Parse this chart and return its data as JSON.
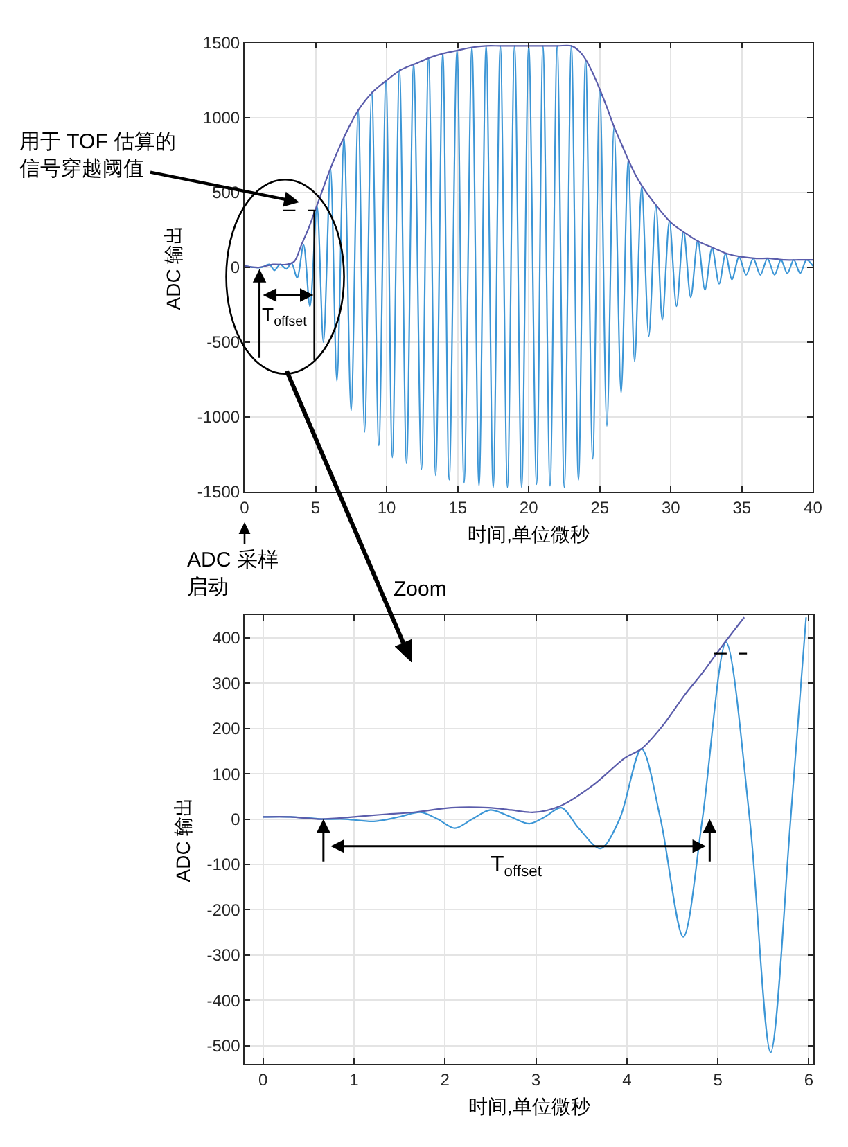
{
  "chart_data": [
    {
      "type": "line",
      "xlabel": "时间,单位微秒",
      "ylabel": "ADC 输出",
      "series": [
        {
          "color": "#3c96d6",
          "x": [
            0,
            0.65,
            1.2,
            1.75,
            2.1,
            2.5,
            2.95,
            3.3,
            3.7,
            4.15,
            4.6,
            5.1,
            5.55,
            6.05,
            6.5,
            7.0,
            7.5,
            8.0,
            8.45,
            8.95,
            9.45,
            9.95,
            10.4,
            10.9,
            11.4,
            11.9,
            12.45,
            12.95,
            13.45,
            13.95,
            14.4,
            14.95,
            15.45,
            16.0,
            16.5,
            17.0,
            17.5,
            18.0,
            18.5,
            19.0,
            19.5,
            20.0,
            20.55,
            21.0,
            21.5,
            22.0,
            22.5,
            23.0,
            23.5,
            24.0,
            24.5,
            25.0,
            25.5,
            26.0,
            26.5,
            27.0,
            27.45,
            27.95,
            28.45,
            28.95,
            29.4,
            29.9,
            30.4,
            30.9,
            31.4,
            31.9,
            32.4,
            32.9,
            33.4,
            33.85,
            34.3,
            34.8,
            35.3,
            35.8,
            36.3,
            36.8,
            37.3,
            37.75,
            38.2,
            38.65,
            39.1,
            39.55,
            40
          ],
          "values": [
            10,
            0,
            0,
            20,
            -20,
            20,
            -10,
            30,
            -70,
            150,
            -260,
            410,
            -500,
            660,
            -760,
            870,
            -960,
            1050,
            -1100,
            1170,
            -1190,
            1250,
            -1270,
            1320,
            -1310,
            1360,
            -1350,
            1400,
            -1390,
            1430,
            -1420,
            1450,
            -1440,
            1470,
            -1460,
            1480,
            -1470,
            1480,
            -1470,
            1480,
            -1470,
            1480,
            -1450,
            1480,
            -1460,
            1480,
            -1470,
            1480,
            -1420,
            1390,
            -1280,
            1190,
            -1060,
            940,
            -840,
            720,
            -630,
            540,
            -460,
            410,
            -350,
            310,
            -260,
            240,
            -200,
            180,
            -150,
            130,
            -110,
            90,
            -80,
            70,
            -50,
            60,
            -50,
            60,
            -50,
            50,
            -40,
            50,
            -40,
            50,
            10
          ]
        },
        {
          "color": "#5a5cab",
          "x": [
            0,
            1,
            2,
            3,
            3.5,
            4,
            4.5,
            5,
            5.5,
            6,
            7,
            8,
            9,
            10,
            11,
            12,
            13,
            14,
            15,
            16,
            17,
            18,
            20,
            22,
            23,
            23.5,
            24,
            24.5,
            25,
            25.5,
            26,
            26.5,
            27,
            27.5,
            28,
            29,
            30,
            31,
            32,
            33,
            34,
            35,
            36,
            37,
            38,
            39,
            40
          ],
          "values": [
            10,
            0,
            20,
            20,
            40,
            150,
            260,
            390,
            520,
            650,
            870,
            1050,
            1170,
            1250,
            1320,
            1360,
            1400,
            1430,
            1450,
            1470,
            1480,
            1480,
            1480,
            1480,
            1480,
            1450,
            1390,
            1300,
            1190,
            1070,
            940,
            830,
            720,
            620,
            540,
            410,
            300,
            230,
            170,
            130,
            90,
            70,
            60,
            60,
            50,
            50,
            50
          ]
        },
        {
          "color": "#000000",
          "x": [
            2.7,
            5.0
          ],
          "values": [
            380,
            380
          ],
          "line_style": "dashed"
        },
        {
          "color": "#000000",
          "x": [
            4.9,
            4.9
          ],
          "values": [
            -620,
            380
          ]
        }
      ],
      "xlim": [
        0,
        40
      ],
      "xticks": [
        0,
        5,
        10,
        15,
        20,
        25,
        30,
        35,
        40
      ],
      "ylim": [
        -1500,
        1500
      ],
      "yticks": [
        -1500,
        -1000,
        -500,
        0,
        500,
        1000,
        1500
      ],
      "grid": true,
      "annotations": [
        "用于 TOF 估算的信号穿越阈值",
        "ADC 采样启动",
        "T$_{offset}$"
      ]
    },
    {
      "type": "line",
      "xlabel": "时间,单位微秒",
      "ylabel": "ADC 输出",
      "series": [
        {
          "color": "#3c96d6",
          "x": [
            0,
            0.3,
            0.65,
            0.9,
            1.22,
            1.5,
            1.73,
            1.92,
            2.11,
            2.3,
            2.5,
            2.72,
            2.93,
            3.1,
            3.28,
            3.47,
            3.71,
            3.92,
            4.16,
            4.37,
            4.62,
            4.83,
            5.09,
            5.35,
            5.58,
            5.8,
            5.97
          ],
          "values": [
            5,
            5,
            0,
            0,
            -5,
            5,
            15,
            0,
            -20,
            0,
            20,
            5,
            -10,
            5,
            25,
            -20,
            -65,
            0,
            155,
            0,
            -260,
            0,
            390,
            0,
            -515,
            0,
            445
          ]
        },
        {
          "color": "#5a5cab",
          "x": [
            0,
            0.3,
            0.64,
            1.0,
            1.31,
            1.66,
            2.07,
            2.48,
            2.73,
            2.98,
            3.28,
            3.63,
            3.98,
            4.16,
            4.39,
            4.64,
            4.84,
            5.04,
            5.29
          ],
          "values": [
            5,
            5,
            0,
            5,
            10,
            15,
            25,
            25,
            20,
            15,
            30,
            75,
            135,
            155,
            205,
            275,
            325,
            380,
            445
          ]
        },
        {
          "color": "#000000",
          "x": [
            4.96,
            5.32
          ],
          "values": [
            365,
            365
          ],
          "line_style": "dashed"
        }
      ],
      "xlim": [
        -0.2,
        6.05
      ],
      "xticks": [
        0,
        1,
        2,
        3,
        4,
        5,
        6
      ],
      "ylim": [
        -540,
        450
      ],
      "yticks": [
        -500,
        -400,
        -300,
        -200,
        -100,
        0,
        100,
        200,
        300,
        400
      ],
      "grid": true,
      "annotations": [
        "Zoom",
        "T$_{offset}$"
      ]
    }
  ]
}
